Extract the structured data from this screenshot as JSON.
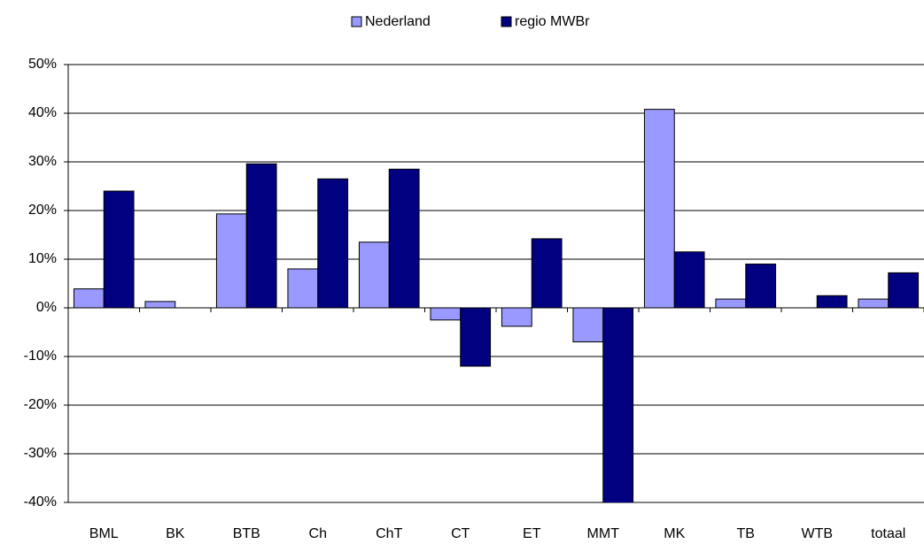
{
  "chart_data": {
    "type": "bar",
    "categories": [
      "BML",
      "BK",
      "BTB",
      "Ch",
      "ChT",
      "CT",
      "ET",
      "MMT",
      "MK",
      "TB",
      "WTB",
      "totaal"
    ],
    "series": [
      {
        "name": "Nederland",
        "color": "#9999ff",
        "values": [
          3.9,
          1.3,
          19.3,
          8,
          13.5,
          -2.5,
          -3.8,
          -7,
          40.8,
          1.8,
          0,
          1.8
        ]
      },
      {
        "name": "regio MWBr",
        "color": "#000080",
        "values": [
          24,
          0,
          29.6,
          26.5,
          28.5,
          -12,
          14.2,
          -41,
          11.5,
          9,
          2.5,
          7.2
        ]
      }
    ],
    "ylim": [
      -40,
      50
    ],
    "yticks": [
      {
        "value": -40,
        "label": "-40%"
      },
      {
        "value": -30,
        "label": "-30%"
      },
      {
        "value": -20,
        "label": "-20%"
      },
      {
        "value": -10,
        "label": "-10%"
      },
      {
        "value": 0,
        "label": "0%"
      },
      {
        "value": 10,
        "label": "10%"
      },
      {
        "value": 20,
        "label": "20%"
      },
      {
        "value": 30,
        "label": "30%"
      },
      {
        "value": 40,
        "label": "40%"
      },
      {
        "value": 50,
        "label": "50%"
      }
    ],
    "grid": true,
    "legend": "top"
  }
}
